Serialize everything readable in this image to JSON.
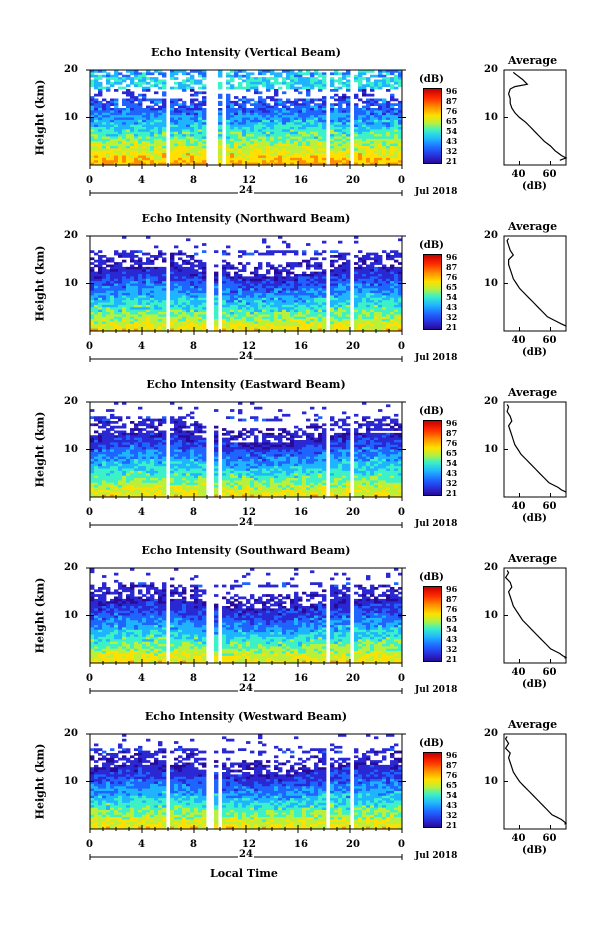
{
  "chart_data": [
    {
      "type": "heatmap",
      "title": "Echo Intensity (Vertical Beam)",
      "ylabel": "Height (km)",
      "ylim": [
        0,
        20
      ],
      "yticks": [
        "20",
        "10"
      ],
      "xticks": [
        "0",
        "4",
        "8",
        "12",
        "16",
        "20",
        "0"
      ],
      "day_label": "24",
      "date_label": "Jul 2018",
      "colorbar": {
        "unit": "(dB)",
        "ticks": [
          "96",
          "87",
          "76",
          "65",
          "54",
          "43",
          "32",
          "21"
        ]
      },
      "data_gaps_hours": [
        [
          5.8,
          6.0
        ],
        [
          8.9,
          9.6
        ],
        [
          10.0,
          10.2
        ],
        [
          17.9,
          18.3
        ],
        [
          20.0,
          20.2
        ]
      ],
      "profile": {
        "title": "Average",
        "xlabel": "(dB)",
        "xticks": [
          "40",
          "60"
        ],
        "yticks": [
          "20",
          "10"
        ],
        "xlim": [
          30,
          70
        ],
        "ylim": [
          0,
          20
        ],
        "x": [
          36,
          38,
          42,
          45,
          37,
          34,
          33,
          34,
          34,
          35,
          37,
          40,
          44,
          47,
          50,
          53,
          56,
          60,
          63,
          65,
          67,
          70,
          66
        ],
        "y": [
          19.5,
          19,
          18,
          17,
          16.5,
          16,
          15,
          14,
          13,
          12,
          11,
          10,
          9,
          8,
          7,
          6,
          5,
          4,
          3,
          2.5,
          2,
          1.5,
          1
        ]
      }
    },
    {
      "type": "heatmap",
      "title": "Echo Intensity (Northward Beam)",
      "ylabel": "Height (km)",
      "ylim": [
        0,
        20
      ],
      "yticks": [
        "20",
        "10"
      ],
      "xticks": [
        "0",
        "4",
        "8",
        "12",
        "16",
        "20",
        "0"
      ],
      "day_label": "24",
      "date_label": "Jul 2018",
      "colorbar": {
        "unit": "(dB)",
        "ticks": [
          "96",
          "87",
          "76",
          "65",
          "54",
          "43",
          "32",
          "21"
        ]
      },
      "data_gaps_hours": [
        [
          5.8,
          6.0
        ],
        [
          8.9,
          9.2
        ],
        [
          9.8,
          10.0
        ],
        [
          17.9,
          18.3
        ],
        [
          20.0,
          20.2
        ]
      ],
      "profile": {
        "title": "Average",
        "xlabel": "(dB)",
        "xticks": [
          "40",
          "60"
        ],
        "yticks": [
          "20",
          "10"
        ],
        "xlim": [
          30,
          70
        ],
        "ylim": [
          0,
          20
        ],
        "x": [
          33,
          32,
          33,
          34,
          36,
          33,
          33,
          34,
          35,
          36,
          38,
          40,
          43,
          46,
          49,
          52,
          55,
          58,
          61,
          64,
          67,
          69,
          70
        ],
        "y": [
          19.5,
          19,
          18,
          17,
          16,
          15,
          14,
          13,
          12,
          11,
          10,
          9,
          8,
          7,
          6,
          5,
          4,
          3,
          2.5,
          2,
          1.5,
          1.2,
          1
        ]
      }
    },
    {
      "type": "heatmap",
      "title": "Echo Intensity (Eastward Beam)",
      "ylabel": "Height (km)",
      "ylim": [
        0,
        20
      ],
      "yticks": [
        "20",
        "10"
      ],
      "xticks": [
        "0",
        "4",
        "8",
        "12",
        "16",
        "20",
        "0"
      ],
      "day_label": "24",
      "date_label": "Jul 2018",
      "colorbar": {
        "unit": "(dB)",
        "ticks": [
          "96",
          "87",
          "76",
          "65",
          "54",
          "43",
          "32",
          "21"
        ]
      },
      "data_gaps_hours": [
        [
          5.8,
          6.0
        ],
        [
          8.9,
          9.2
        ],
        [
          9.8,
          10.0
        ],
        [
          17.9,
          18.3
        ],
        [
          20.0,
          20.2
        ]
      ],
      "profile": {
        "title": "Average",
        "xlabel": "(dB)",
        "xticks": [
          "40",
          "60"
        ],
        "yticks": [
          "20",
          "10"
        ],
        "xlim": [
          30,
          70
        ],
        "ylim": [
          0,
          20
        ],
        "x": [
          32,
          33,
          32,
          34,
          35,
          33,
          34,
          35,
          36,
          37,
          39,
          41,
          44,
          47,
          50,
          53,
          56,
          59,
          62,
          65,
          67,
          69,
          70
        ],
        "y": [
          19.5,
          19,
          18,
          17,
          16,
          15,
          14,
          13,
          12,
          11,
          10,
          9,
          8,
          7,
          6,
          5,
          4,
          3,
          2.5,
          2,
          1.5,
          1.2,
          1
        ]
      }
    },
    {
      "type": "heatmap",
      "title": "Echo Intensity (Southward Beam)",
      "ylabel": "Height (km)",
      "ylim": [
        0,
        20
      ],
      "yticks": [
        "20",
        "10"
      ],
      "xticks": [
        "0",
        "4",
        "8",
        "12",
        "16",
        "20",
        "0"
      ],
      "day_label": "24",
      "date_label": "Jul 2018",
      "colorbar": {
        "unit": "(dB)",
        "ticks": [
          "96",
          "87",
          "76",
          "65",
          "54",
          "43",
          "32",
          "21"
        ]
      },
      "data_gaps_hours": [
        [
          5.8,
          6.0
        ],
        [
          8.9,
          9.2
        ],
        [
          9.8,
          10.0
        ],
        [
          17.9,
          18.3
        ],
        [
          20.0,
          20.2
        ]
      ],
      "profile": {
        "title": "Average",
        "xlabel": "(dB)",
        "xticks": [
          "40",
          "60"
        ],
        "yticks": [
          "20",
          "10"
        ],
        "xlim": [
          30,
          70
        ],
        "ylim": [
          0,
          20
        ],
        "x": [
          32,
          33,
          31,
          34,
          35,
          33,
          34,
          35,
          36,
          38,
          40,
          42,
          45,
          48,
          51,
          54,
          57,
          60,
          63,
          66,
          68,
          70,
          69
        ],
        "y": [
          19.5,
          19,
          18,
          17,
          16,
          15,
          14,
          13,
          12,
          11,
          10,
          9,
          8,
          7,
          6,
          5,
          4,
          3,
          2.5,
          2,
          1.5,
          1.2,
          1
        ]
      }
    },
    {
      "type": "heatmap",
      "title": "Echo Intensity (Westward Beam)",
      "ylabel": "Height (km)",
      "ylim": [
        0,
        20
      ],
      "yticks": [
        "20",
        "10"
      ],
      "xticks": [
        "0",
        "4",
        "8",
        "12",
        "16",
        "20",
        "0"
      ],
      "day_label": "24",
      "date_label": "Jul 2018",
      "colorbar": {
        "unit": "(dB)",
        "ticks": [
          "96",
          "87",
          "76",
          "65",
          "54",
          "43",
          "32",
          "21"
        ]
      },
      "data_gaps_hours": [
        [
          5.8,
          6.0
        ],
        [
          8.9,
          9.2
        ],
        [
          9.8,
          10.0
        ],
        [
          17.9,
          18.3
        ],
        [
          20.0,
          20.2
        ]
      ],
      "profile": {
        "title": "Average",
        "xlabel": "(dB)",
        "xticks": [
          "40",
          "60"
        ],
        "yticks": [
          "20",
          "10"
        ],
        "xlim": [
          30,
          70
        ],
        "ylim": [
          0,
          20
        ],
        "x": [
          32,
          31,
          33,
          31,
          34,
          33,
          34,
          35,
          36,
          38,
          40,
          43,
          46,
          49,
          52,
          55,
          58,
          61,
          64,
          67,
          69,
          70,
          69
        ],
        "y": [
          19.5,
          19,
          18,
          17,
          16,
          15,
          14,
          13,
          12,
          11,
          10,
          9,
          8,
          7,
          6,
          5,
          4,
          3,
          2.5,
          2,
          1.5,
          1.2,
          1
        ]
      }
    }
  ],
  "footer": {
    "xlabel": "Local Time"
  }
}
